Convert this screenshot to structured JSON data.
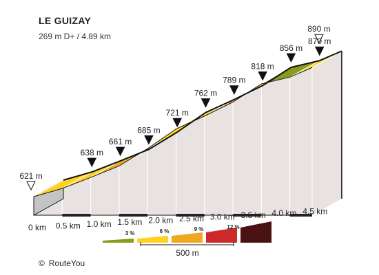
{
  "chart_data": {
    "type": "area",
    "title": "LE GUIZAY",
    "subtitle": "269 m D+ / 4.89 km",
    "x_km": [
      0,
      0.5,
      1.0,
      1.5,
      2.0,
      2.5,
      3.0,
      3.5,
      4.0,
      4.5,
      4.89
    ],
    "elevation_labels": [
      "621 m",
      "638 m",
      "661 m",
      "685 m",
      "721 m",
      "762 m",
      "789 m",
      "818 m",
      "856 m",
      "870 m",
      "890 m"
    ],
    "elevation_m": [
      621,
      638,
      661,
      685,
      721,
      762,
      789,
      818,
      856,
      870,
      890
    ],
    "segment_grade_class": [
      "3-6",
      "3-6",
      "6-9",
      "6-9",
      "3-6",
      "3-6",
      "6-9",
      "3-6",
      "0-3",
      "3-6"
    ],
    "x_tick_labels": [
      "0 km",
      "0.5 km",
      "1.0 km",
      "1.5 km",
      "2.0 km",
      "2.5 km",
      "3.0 km",
      "3.5 km",
      "4.0 km",
      "4.5 km"
    ],
    "legend": {
      "grade_labels": [
        "3 %",
        "6 %",
        "9 %",
        "12 %"
      ],
      "classes": [
        {
          "color": "#8a9a1a"
        },
        {
          "color": "#ffd21e"
        },
        {
          "color": "#f0a820"
        },
        {
          "color": "#cc2a2a"
        },
        {
          "color": "#4a1212"
        }
      ],
      "scale_label": "500 m"
    },
    "colors": {
      "0-3": "#8a9a1a",
      "3-6": "#ffd21e",
      "6-9": "#f0a820",
      "9-12": "#cc2a2a",
      "12+": "#4a1212",
      "side": "#e8e3e1",
      "base": "#c4c4c4"
    }
  },
  "credit": {
    "symbol": "©",
    "text": "RouteYou"
  }
}
